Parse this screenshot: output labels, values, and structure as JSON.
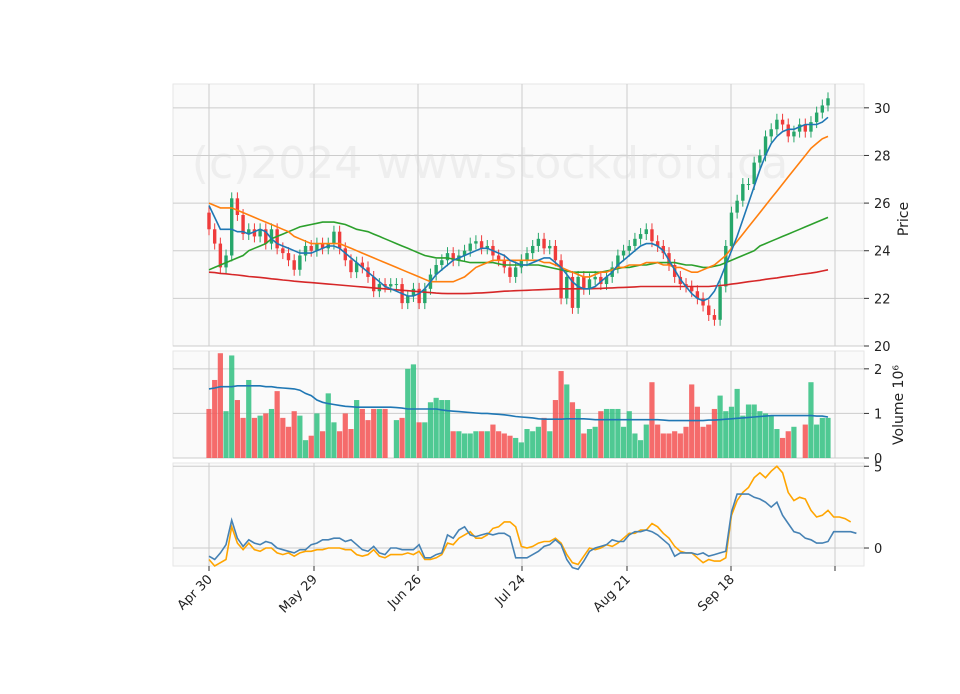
{
  "watermark": "(c)2024 www.stockdroid.ca",
  "chart_data": [
    {
      "type": "candlestick",
      "panel": "price",
      "ylabel": "Price",
      "ylim": [
        20,
        31
      ],
      "yticks": [
        20,
        22,
        24,
        26,
        28,
        30
      ],
      "xticks": [
        "Apr 30",
        "May 29",
        "Jun 26",
        "Jul 24",
        "Aug 21",
        "Sep 18",
        ""
      ],
      "grid": true,
      "colors": {
        "up": "#26a66a",
        "down": "#ef3b3b",
        "ma_fast": "#1f77b4",
        "ma_mid": "#ff7f0e",
        "ma_slow": "#2ca02c",
        "ma_long": "#d62728"
      },
      "close": [
        24.9,
        24.3,
        23.3,
        23.8,
        26.2,
        25.5,
        24.7,
        24.9,
        24.6,
        24.9,
        24.3,
        24.9,
        24.1,
        23.9,
        23.6,
        23.2,
        23.8,
        24.2,
        24.0,
        24.3,
        24.1,
        24.3,
        24.8,
        24.1,
        23.6,
        23.1,
        23.5,
        23.3,
        22.9,
        22.3,
        22.6,
        22.5,
        22.6,
        22.6,
        21.8,
        22.1,
        22.4,
        21.8,
        22.4,
        23.0,
        23.4,
        23.6,
        23.9,
        23.6,
        23.8,
        24.0,
        24.3,
        24.4,
        24.1,
        24.2,
        23.8,
        23.6,
        23.3,
        22.9,
        23.3,
        23.6,
        23.9,
        24.2,
        24.5,
        24.1,
        24.2,
        23.6,
        22.0,
        22.9,
        21.6,
        22.9,
        22.4,
        22.8,
        22.9,
        22.6,
        22.9,
        23.3,
        23.8,
        24.0,
        24.2,
        24.5,
        24.7,
        24.9,
        24.4,
        24.2,
        23.9,
        23.4,
        22.9,
        22.6,
        22.5,
        22.3,
        22.0,
        21.7,
        21.3,
        21.1,
        22.5,
        24.2,
        25.6,
        26.1,
        26.8,
        26.8,
        27.7,
        28.0,
        28.8,
        29.1,
        29.5,
        29.3,
        28.8,
        29.0,
        29.3,
        29.0,
        29.4,
        29.8,
        30.1,
        30.4
      ],
      "ma_fast": [
        25.9,
        25.4,
        24.9,
        24.9,
        24.9,
        24.8,
        24.8,
        24.7,
        24.8,
        24.9,
        24.8,
        24.5,
        24.3,
        24.2,
        24.1,
        24.0,
        23.9,
        23.9,
        23.9,
        24.0,
        24.1,
        24.2,
        24.2,
        24.1,
        23.9,
        23.7,
        23.5,
        23.3,
        23.1,
        22.9,
        22.7,
        22.5,
        22.4,
        22.3,
        22.2,
        22.1,
        22.1,
        22.2,
        22.4,
        22.7,
        23.0,
        23.2,
        23.4,
        23.6,
        23.7,
        23.8,
        23.9,
        24.0,
        24.1,
        24.1,
        24.0,
        23.9,
        23.8,
        23.6,
        23.5,
        23.4,
        23.4,
        23.5,
        23.6,
        23.7,
        23.7,
        23.5,
        23.3,
        23.0,
        22.7,
        22.5,
        22.4,
        22.4,
        22.5,
        22.7,
        22.9,
        23.1,
        23.4,
        23.6,
        23.8,
        24.0,
        24.2,
        24.3,
        24.3,
        24.2,
        24.0,
        23.6,
        23.2,
        22.8,
        22.5,
        22.2,
        22.0,
        21.9,
        22.0,
        22.3,
        22.8,
        23.4,
        24.0,
        24.6,
        25.3,
        26.0,
        26.7,
        27.4,
        28.0,
        28.5,
        28.8,
        29.0,
        29.1,
        29.1,
        29.2,
        29.3,
        29.3,
        29.3,
        29.4,
        29.6
      ],
      "ma_mid": [
        26.0,
        25.9,
        25.8,
        25.8,
        25.8,
        25.7,
        25.6,
        25.5,
        25.4,
        25.3,
        25.2,
        25.1,
        25.0,
        24.9,
        24.8,
        24.6,
        24.5,
        24.4,
        24.3,
        24.3,
        24.3,
        24.3,
        24.3,
        24.3,
        24.2,
        24.1,
        24.0,
        23.9,
        23.8,
        23.7,
        23.6,
        23.5,
        23.4,
        23.3,
        23.2,
        23.1,
        23.0,
        22.9,
        22.8,
        22.7,
        22.7,
        22.7,
        22.7,
        22.7,
        22.8,
        22.9,
        23.1,
        23.3,
        23.4,
        23.5,
        23.6,
        23.6,
        23.6,
        23.6,
        23.6,
        23.6,
        23.6,
        23.6,
        23.6,
        23.5,
        23.5,
        23.4,
        23.3,
        23.2,
        23.1,
        23.0,
        22.9,
        22.9,
        23.0,
        23.1,
        23.1,
        23.2,
        23.3,
        23.3,
        23.4,
        23.4,
        23.4,
        23.5,
        23.5,
        23.5,
        23.4,
        23.4,
        23.3,
        23.3,
        23.2,
        23.1,
        23.1,
        23.2,
        23.3,
        23.4,
        23.6,
        23.8,
        24.1,
        24.4,
        24.7,
        25.0,
        25.3,
        25.6,
        25.9,
        26.2,
        26.5,
        26.8,
        27.1,
        27.4,
        27.7,
        28.0,
        28.3,
        28.5,
        28.7,
        28.8
      ],
      "ma_slow": [
        23.2,
        23.3,
        23.4,
        23.5,
        23.6,
        23.7,
        23.8,
        24.0,
        24.1,
        24.2,
        24.3,
        24.5,
        24.6,
        24.7,
        24.8,
        24.9,
        25.0,
        25.05,
        25.1,
        25.15,
        25.2,
        25.2,
        25.2,
        25.15,
        25.1,
        25.0,
        24.9,
        24.85,
        24.8,
        24.7,
        24.6,
        24.5,
        24.4,
        24.3,
        24.2,
        24.1,
        24.0,
        23.9,
        23.8,
        23.75,
        23.7,
        23.7,
        23.7,
        23.65,
        23.6,
        23.55,
        23.5,
        23.5,
        23.5,
        23.5,
        23.5,
        23.45,
        23.4,
        23.4,
        23.4,
        23.4,
        23.4,
        23.4,
        23.4,
        23.35,
        23.3,
        23.25,
        23.2,
        23.15,
        23.1,
        23.1,
        23.1,
        23.1,
        23.1,
        23.1,
        23.15,
        23.2,
        23.25,
        23.3,
        23.3,
        23.35,
        23.4,
        23.4,
        23.45,
        23.5,
        23.5,
        23.5,
        23.5,
        23.45,
        23.4,
        23.4,
        23.35,
        23.3,
        23.3,
        23.35,
        23.4,
        23.5,
        23.6,
        23.7,
        23.8,
        23.9,
        24.0,
        24.2,
        24.3,
        24.4,
        24.5,
        24.6,
        24.7,
        24.8,
        24.9,
        25.0,
        25.1,
        25.2,
        25.3,
        25.4
      ],
      "ma_long": [
        23.1,
        23.08,
        23.05,
        23.03,
        23.0,
        22.98,
        22.95,
        22.92,
        22.9,
        22.88,
        22.85,
        22.82,
        22.8,
        22.77,
        22.75,
        22.72,
        22.7,
        22.68,
        22.66,
        22.64,
        22.62,
        22.6,
        22.58,
        22.56,
        22.54,
        22.52,
        22.5,
        22.48,
        22.46,
        22.44,
        22.42,
        22.4,
        22.38,
        22.36,
        22.34,
        22.32,
        22.3,
        22.28,
        22.26,
        22.24,
        22.22,
        22.21,
        22.2,
        22.2,
        22.2,
        22.2,
        22.21,
        22.22,
        22.23,
        22.24,
        22.26,
        22.28,
        22.3,
        22.31,
        22.32,
        22.33,
        22.34,
        22.35,
        22.36,
        22.37,
        22.38,
        22.39,
        22.4,
        22.4,
        22.4,
        22.4,
        22.4,
        22.4,
        22.41,
        22.42,
        22.43,
        22.44,
        22.45,
        22.46,
        22.47,
        22.48,
        22.5,
        22.5,
        22.5,
        22.5,
        22.5,
        22.5,
        22.5,
        22.5,
        22.5,
        22.5,
        22.5,
        22.5,
        22.5,
        22.52,
        22.54,
        22.56,
        22.6,
        22.63,
        22.66,
        22.7,
        22.73,
        22.76,
        22.8,
        22.83,
        22.86,
        22.9,
        22.93,
        22.96,
        23.0,
        23.03,
        23.06,
        23.1,
        23.15,
        23.2
      ]
    },
    {
      "type": "bar",
      "panel": "volume",
      "ylabel": "Volume  10⁶",
      "ylim": [
        0,
        2.4
      ],
      "yticks": [
        0,
        1,
        2
      ],
      "values": [
        1.1,
        1.75,
        2.35,
        1.05,
        2.3,
        1.3,
        0.9,
        1.75,
        0.9,
        0.95,
        1.0,
        1.1,
        1.5,
        0.9,
        0.7,
        1.05,
        0.95,
        0.4,
        0.5,
        1.0,
        0.6,
        1.45,
        0.8,
        0.6,
        1.0,
        0.65,
        1.3,
        1.1,
        0.85,
        1.1,
        1.1,
        1.1,
        0.0,
        0.85,
        0.9,
        2.0,
        2.1,
        0.8,
        0.8,
        1.25,
        1.35,
        1.3,
        1.3,
        0.6,
        0.6,
        0.55,
        0.55,
        0.6,
        0.6,
        0.6,
        0.75,
        0.6,
        0.55,
        0.5,
        0.45,
        0.35,
        0.65,
        0.6,
        0.7,
        0.9,
        0.6,
        1.3,
        1.95,
        1.65,
        1.25,
        1.1,
        0.55,
        0.65,
        0.7,
        1.05,
        1.1,
        1.1,
        1.1,
        0.7,
        1.05,
        0.55,
        0.4,
        0.75,
        1.7,
        0.75,
        0.55,
        0.55,
        0.6,
        0.55,
        0.7,
        1.65,
        1.15,
        0.7,
        0.75,
        1.1,
        1.4,
        1.05,
        1.15,
        1.55,
        0.95,
        1.2,
        1.2,
        1.05,
        1.0,
        0.95,
        0.65,
        0.45,
        0.6,
        0.7,
        0.0,
        0.75,
        1.7,
        0.75,
        0.9,
        0.9
      ],
      "avg": [
        1.55,
        1.57,
        1.6,
        1.6,
        1.6,
        1.62,
        1.62,
        1.62,
        1.62,
        1.62,
        1.6,
        1.6,
        1.58,
        1.57,
        1.56,
        1.55,
        1.52,
        1.45,
        1.4,
        1.3,
        1.25,
        1.22,
        1.2,
        1.18,
        1.16,
        1.15,
        1.14,
        1.14,
        1.14,
        1.14,
        1.14,
        1.14,
        1.14,
        1.13,
        1.12,
        1.1,
        1.1,
        1.1,
        1.1,
        1.1,
        1.1,
        1.08,
        1.06,
        1.05,
        1.04,
        1.03,
        1.02,
        1.01,
        1.0,
        1.0,
        0.99,
        0.98,
        0.97,
        0.95,
        0.93,
        0.92,
        0.91,
        0.9,
        0.88,
        0.87,
        0.87,
        0.87,
        0.87,
        0.88,
        0.88,
        0.88,
        0.88,
        0.87,
        0.86,
        0.86,
        0.86,
        0.86,
        0.86,
        0.86,
        0.86,
        0.86,
        0.86,
        0.86,
        0.86,
        0.86,
        0.85,
        0.84,
        0.84,
        0.84,
        0.84,
        0.84,
        0.84,
        0.84,
        0.85,
        0.85,
        0.86,
        0.87,
        0.88,
        0.89,
        0.9,
        0.91,
        0.92,
        0.93,
        0.94,
        0.95,
        0.95,
        0.95,
        0.95,
        0.95,
        0.95,
        0.95,
        0.95,
        0.94,
        0.94,
        0.92
      ]
    },
    {
      "type": "line",
      "panel": "oscillator",
      "ylim": [
        -1.1,
        5.2
      ],
      "yticks": [
        0,
        5
      ],
      "colors": {
        "line_a": "#4682b4",
        "line_b": "#ffa500"
      },
      "series": [
        {
          "key": "blue",
          "values": [
            -0.5,
            -0.7,
            -0.3,
            0.2,
            1.7,
            0.6,
            0.1,
            0.5,
            0.3,
            0.2,
            0.4,
            0.3,
            0.0,
            -0.1,
            -0.2,
            -0.3,
            -0.1,
            -0.1,
            0.2,
            0.3,
            0.5,
            0.5,
            0.6,
            0.6,
            0.4,
            0.5,
            0.2,
            -0.1,
            -0.2,
            0.1,
            -0.3,
            -0.4,
            0.0,
            0.0,
            -0.1,
            -0.1,
            -0.1,
            0.2,
            -0.6,
            -0.6,
            -0.4,
            -0.3,
            0.8,
            0.6,
            1.1,
            1.3,
            0.8,
            0.7,
            0.8,
            0.9,
            0.8,
            0.9,
            0.9,
            0.7,
            -0.6,
            -0.6,
            -0.6,
            -0.4,
            -0.2,
            0.1,
            0.2,
            0.5,
            0.2,
            -0.7,
            -1.2,
            -1.3,
            -0.8,
            -0.2,
            0.0,
            0.1,
            0.2,
            0.5,
            0.4,
            0.4,
            0.8,
            1.0,
            1.0,
            1.1,
            1.0,
            0.8,
            0.5,
            0.2,
            -0.5,
            -0.3,
            -0.3,
            -0.3,
            -0.4,
            -0.3,
            -0.5,
            -0.4,
            -0.3,
            -0.2,
            2.2,
            3.3,
            3.3,
            3.3,
            3.1,
            3.0,
            2.8,
            2.5,
            2.8,
            2.0,
            1.5,
            1.0,
            0.9,
            0.6,
            0.5,
            0.3,
            0.3,
            0.4,
            1.0,
            1.0,
            1.0,
            1.0,
            0.9
          ]
        },
        {
          "key": "orange",
          "values": [
            -0.7,
            -1.1,
            -0.9,
            -0.7,
            1.3,
            0.3,
            -0.1,
            0.3,
            -0.1,
            -0.2,
            0.0,
            0.0,
            -0.3,
            -0.4,
            -0.3,
            -0.5,
            -0.3,
            -0.2,
            -0.2,
            -0.1,
            -0.1,
            0.0,
            0.0,
            0.0,
            -0.1,
            -0.1,
            -0.4,
            -0.5,
            -0.4,
            -0.1,
            -0.5,
            -0.6,
            -0.4,
            -0.4,
            -0.4,
            -0.3,
            -0.4,
            -0.2,
            -0.7,
            -0.7,
            -0.6,
            -0.4,
            0.3,
            0.2,
            0.6,
            0.8,
            1.0,
            0.6,
            0.6,
            0.8,
            1.2,
            1.3,
            1.6,
            1.6,
            1.3,
            0.1,
            0.0,
            0.1,
            0.3,
            0.4,
            0.4,
            0.6,
            0.3,
            -0.4,
            -0.9,
            -1.0,
            -0.5,
            0.0,
            -0.1,
            0.0,
            0.2,
            0.1,
            0.3,
            0.6,
            0.9,
            0.9,
            1.1,
            1.1,
            1.5,
            1.3,
            0.9,
            0.6,
            0.1,
            -0.2,
            -0.3,
            -0.3,
            -0.6,
            -0.9,
            -0.7,
            -0.8,
            -0.8,
            -0.6,
            2.0,
            2.9,
            3.4,
            3.7,
            4.3,
            4.6,
            4.3,
            4.7,
            5.0,
            4.6,
            3.4,
            2.9,
            3.1,
            3.0,
            2.3,
            1.9,
            2.0,
            2.3,
            1.9,
            1.9,
            1.8,
            1.6
          ]
        }
      ]
    }
  ]
}
